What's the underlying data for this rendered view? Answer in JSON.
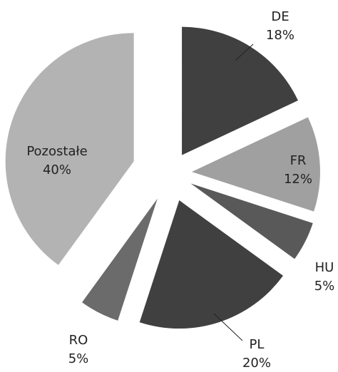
{
  "chart_data": {
    "type": "pie",
    "categories": [
      "DE",
      "FR",
      "HU",
      "PL",
      "RO",
      "Pozostałe"
    ],
    "values": [
      18,
      12,
      5,
      20,
      5,
      40
    ],
    "value_labels": [
      "18%",
      "12%",
      "5%",
      "20%",
      "5%",
      "40%"
    ],
    "colors": [
      "#404040",
      "#a0a0a0",
      "#595959",
      "#404040",
      "#6b6b6b",
      "#b3b3b3"
    ]
  }
}
